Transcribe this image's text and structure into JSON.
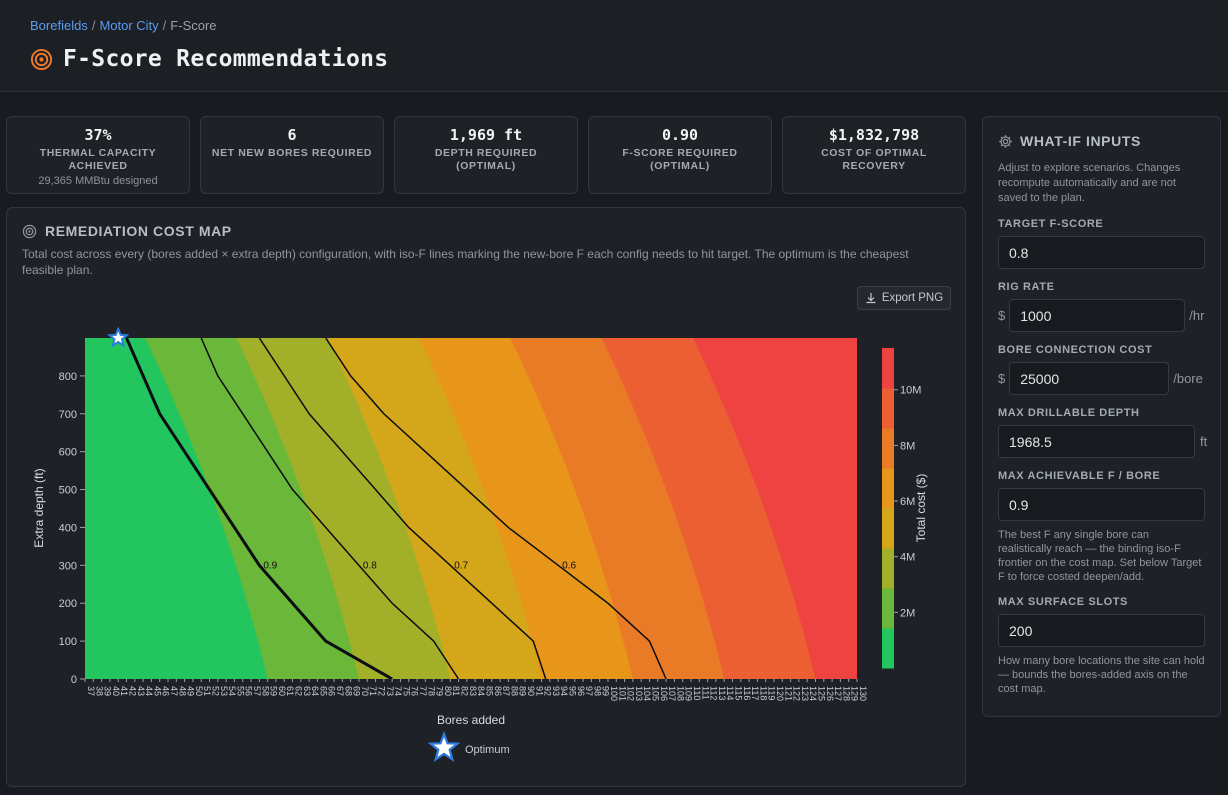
{
  "breadcrumb": {
    "items": [
      "Borefields",
      "Motor City"
    ],
    "current": "F-Score",
    "separator": "/"
  },
  "page": {
    "title": "F-Score Recommendations",
    "accent": "#f07a2c"
  },
  "stats": [
    {
      "value": "37%",
      "label": "THERMAL CAPACITY ACHIEVED",
      "sub": "29,365 MMBtu designed"
    },
    {
      "value": "6",
      "label": "NET NEW BORES REQUIRED",
      "sub": ""
    },
    {
      "value": "1,969 ft",
      "label": "DEPTH REQUIRED (OPTIMAL)",
      "sub": ""
    },
    {
      "value": "0.90",
      "label": "F-SCORE REQUIRED (OPTIMAL)",
      "sub": ""
    },
    {
      "value": "$1,832,798",
      "label": "COST OF OPTIMAL RECOVERY",
      "sub": ""
    }
  ],
  "map": {
    "title": "REMEDIATION COST MAP",
    "description": "Total cost across every (bores added × extra depth) configuration, with iso-F lines marking the new-bore F each config needs to hit target. The optimum is the cheapest feasible plan.",
    "export_label": "Export PNG",
    "legend_label": "Optimum"
  },
  "chart_data": {
    "type": "heatmap",
    "xlabel": "Bores added",
    "ylabel": "Extra depth (ft)",
    "colorbar_label": "Total cost ($)",
    "x_range": [
      37,
      130
    ],
    "y_range": [
      0,
      900
    ],
    "y_ticks": [
      0,
      100,
      200,
      300,
      400,
      500,
      600,
      700,
      800
    ],
    "colorbar_ticks": [
      "2M",
      "4M",
      "6M",
      "8M",
      "10M"
    ],
    "colorbar_values": [
      2000000,
      4000000,
      6000000,
      8000000,
      10000000
    ],
    "colorbar_range": [
      0,
      11500000
    ],
    "colorscale": [
      "#22c55e",
      "#6ab73a",
      "#a2b029",
      "#d4a61a",
      "#e8961a",
      "#ea7b26",
      "#ec5f33",
      "#ee4340"
    ],
    "contours": [
      {
        "label": "0.9",
        "points": [
          [
            42,
            900
          ],
          [
            44,
            800
          ],
          [
            46,
            700
          ],
          [
            49,
            600
          ],
          [
            52,
            500
          ],
          [
            55,
            400
          ],
          [
            58,
            300
          ],
          [
            62,
            200
          ],
          [
            66,
            100
          ],
          [
            74,
            0
          ]
        ]
      },
      {
        "label": "0.8",
        "points": [
          [
            51,
            900
          ],
          [
            53,
            800
          ],
          [
            56,
            700
          ],
          [
            59,
            600
          ],
          [
            62,
            500
          ],
          [
            66,
            400
          ],
          [
            70,
            300
          ],
          [
            74,
            200
          ],
          [
            79,
            100
          ],
          [
            82,
            0
          ]
        ]
      },
      {
        "label": "0.7",
        "points": [
          [
            58,
            900
          ],
          [
            61,
            800
          ],
          [
            64,
            700
          ],
          [
            68,
            600
          ],
          [
            72,
            500
          ],
          [
            76,
            400
          ],
          [
            81,
            300
          ],
          [
            86,
            200
          ],
          [
            91,
            100
          ],
          [
            92.5,
            0
          ]
        ]
      },
      {
        "label": "0.6",
        "points": [
          [
            66,
            900
          ],
          [
            69,
            800
          ],
          [
            73,
            700
          ],
          [
            78,
            600
          ],
          [
            83,
            500
          ],
          [
            88,
            400
          ],
          [
            94,
            300
          ],
          [
            100,
            200
          ],
          [
            105,
            100
          ],
          [
            107,
            0
          ]
        ]
      }
    ],
    "optimum": {
      "x": 41,
      "y": 900
    }
  },
  "sidebar": {
    "title": "WHAT-IF INPUTS",
    "intro": "Adjust to explore scenarios. Changes recompute automatically and are not saved to the plan.",
    "fields": [
      {
        "label": "TARGET F-SCORE",
        "value": "0.8",
        "prefix": "",
        "suffix": "",
        "help": ""
      },
      {
        "label": "RIG RATE",
        "value": "1000",
        "prefix": "$",
        "suffix": "/hr",
        "help": ""
      },
      {
        "label": "BORE CONNECTION COST",
        "value": "25000",
        "prefix": "$",
        "suffix": "/bore",
        "help": ""
      },
      {
        "label": "MAX DRILLABLE DEPTH",
        "value": "1968.5",
        "prefix": "",
        "suffix": "ft",
        "help": ""
      },
      {
        "label": "MAX ACHIEVABLE F / BORE",
        "value": "0.9",
        "prefix": "",
        "suffix": "",
        "help": "The best F any single bore can realistically reach — the binding iso-F frontier on the cost map. Set below Target F to force costed deepen/add."
      },
      {
        "label": "MAX SURFACE SLOTS",
        "value": "200",
        "prefix": "",
        "suffix": "",
        "help": "How many bore locations the site can hold — bounds the bores-added axis on the cost map."
      }
    ]
  }
}
